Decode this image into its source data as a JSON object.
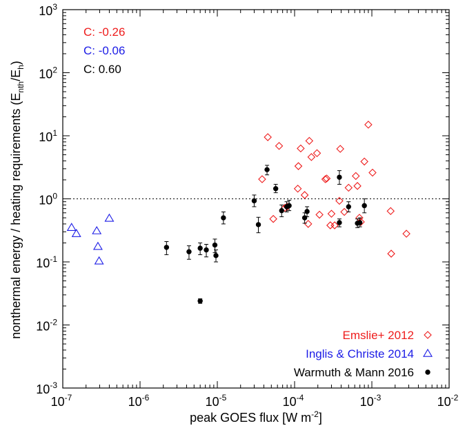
{
  "chart_data": {
    "type": "scatter",
    "title": "",
    "xlabel": "peak GOES flux [W m",
    "xlabel_sup": "-2",
    "xlabel_end": "]",
    "ylabel": "nonthermal energy / heating requirements (E",
    "ylabel_sub1": "nth",
    "ylabel_mid": "/E",
    "ylabel_sub2": "h",
    "ylabel_end": ")",
    "x_scale": "log",
    "y_scale": "log",
    "xlim": [
      1e-07,
      0.01
    ],
    "ylim": [
      0.001,
      1000.0
    ],
    "x_ticks": [
      {
        "base": "10",
        "exp": "-7",
        "value": 1e-07
      },
      {
        "base": "10",
        "exp": "-6",
        "value": 1e-06
      },
      {
        "base": "10",
        "exp": "-5",
        "value": 1e-05
      },
      {
        "base": "10",
        "exp": "-4",
        "value": 0.0001
      },
      {
        "base": "10",
        "exp": "-3",
        "value": 0.001
      },
      {
        "base": "10",
        "exp": "-2",
        "value": 0.01
      }
    ],
    "y_ticks": [
      {
        "base": "10",
        "exp": "-3",
        "value": 0.001
      },
      {
        "base": "10",
        "exp": "-2",
        "value": 0.01
      },
      {
        "base": "10",
        "exp": "-1",
        "value": 0.1
      },
      {
        "base": "10",
        "exp": "0",
        "value": 1
      },
      {
        "base": "10",
        "exp": "1",
        "value": 10
      },
      {
        "base": "10",
        "exp": "2",
        "value": 100
      },
      {
        "base": "10",
        "exp": "3",
        "value": 1000
      }
    ],
    "reference_line": {
      "y": 1,
      "style": "dotted"
    },
    "annotations": [
      {
        "text": "C: -0.26",
        "color": "#ee1c1c"
      },
      {
        "text": "C: -0.06",
        "color": "#1c1ce6"
      },
      {
        "text": "C: 0.60",
        "color": "#000000"
      }
    ],
    "legend_position": "bottom-right",
    "series": [
      {
        "name": "Emslie+ 2012",
        "color": "#ee1c1c",
        "marker": "diamond-open",
        "points": [
          [
            3.8e-05,
            2.05
          ],
          [
            4.5e-05,
            9.5
          ],
          [
            5.3e-05,
            0.48
          ],
          [
            6.3e-05,
            6.9
          ],
          [
            7.5e-05,
            0.72
          ],
          [
            8e-05,
            0.75
          ],
          [
            0.00011,
            1.45
          ],
          [
            0.000112,
            3.3
          ],
          [
            0.00012,
            6.3
          ],
          [
            0.000135,
            1.15
          ],
          [
            0.00015,
            0.4
          ],
          [
            0.000155,
            8.3
          ],
          [
            0.000165,
            4.6
          ],
          [
            0.000195,
            5.3
          ],
          [
            0.00021,
            0.56
          ],
          [
            0.00025,
            2.05
          ],
          [
            0.00026,
            2.1
          ],
          [
            0.00029,
            0.38
          ],
          [
            0.0003,
            0.58
          ],
          [
            0.00033,
            0.38
          ],
          [
            0.00038,
            0.93
          ],
          [
            0.00039,
            6.2
          ],
          [
            0.00044,
            0.62
          ],
          [
            0.0005,
            1.5
          ],
          [
            0.00062,
            2.3
          ],
          [
            0.00065,
            1.6
          ],
          [
            0.00069,
            0.5
          ],
          [
            0.00072,
            0.43
          ],
          [
            0.0008,
            3.9
          ],
          [
            0.0009,
            15.0
          ],
          [
            0.00102,
            2.6
          ],
          [
            0.00175,
            0.64
          ],
          [
            0.00178,
            0.135
          ],
          [
            0.0028,
            0.28
          ]
        ]
      },
      {
        "name": "Inglis & Christe 2014",
        "color": "#1c1ce6",
        "marker": "triangle-open",
        "points": [
          [
            1.3e-07,
            0.35
          ],
          [
            1.5e-07,
            0.28
          ],
          [
            2.75e-07,
            0.31
          ],
          [
            2.85e-07,
            0.175
          ],
          [
            2.95e-07,
            0.103
          ],
          [
            4e-07,
            0.49
          ]
        ]
      },
      {
        "name": "Warmuth & Mann 2016",
        "color": "#000000",
        "marker": "circle-filled",
        "points": [
          [
            2.2e-06,
            0.17,
            0.13,
            0.21
          ],
          [
            4.3e-06,
            0.145,
            0.11,
            0.18
          ],
          [
            6e-06,
            0.024,
            0.022,
            0.026
          ],
          [
            6e-06,
            0.165,
            0.13,
            0.2
          ],
          [
            7.2e-06,
            0.155,
            0.12,
            0.19
          ],
          [
            9.3e-06,
            0.185,
            0.14,
            0.23
          ],
          [
            9.6e-06,
            0.126,
            0.1,
            0.155
          ],
          [
            1.2e-05,
            0.5,
            0.4,
            0.62
          ],
          [
            3e-05,
            0.93,
            0.75,
            1.15
          ],
          [
            3.4e-05,
            0.39,
            0.29,
            0.51
          ],
          [
            4.4e-05,
            2.9,
            2.4,
            3.4
          ],
          [
            5.7e-05,
            1.45,
            1.25,
            1.7
          ],
          [
            6.8e-05,
            0.65,
            0.52,
            0.8
          ],
          [
            7.9e-05,
            0.75,
            0.62,
            0.9
          ],
          [
            8.5e-05,
            0.78,
            0.65,
            0.95
          ],
          [
            0.000135,
            0.5,
            0.41,
            0.6
          ],
          [
            0.000145,
            0.63,
            0.52,
            0.75
          ],
          [
            0.00038,
            2.2,
            1.7,
            2.8
          ],
          [
            0.00038,
            0.42,
            0.36,
            0.48
          ],
          [
            0.0005,
            0.75,
            0.62,
            0.9
          ],
          [
            0.00065,
            0.41,
            0.35,
            0.48
          ],
          [
            0.0007,
            0.42,
            0.36,
            0.5
          ],
          [
            0.0008,
            0.78,
            0.6,
            1.0
          ]
        ]
      }
    ]
  }
}
